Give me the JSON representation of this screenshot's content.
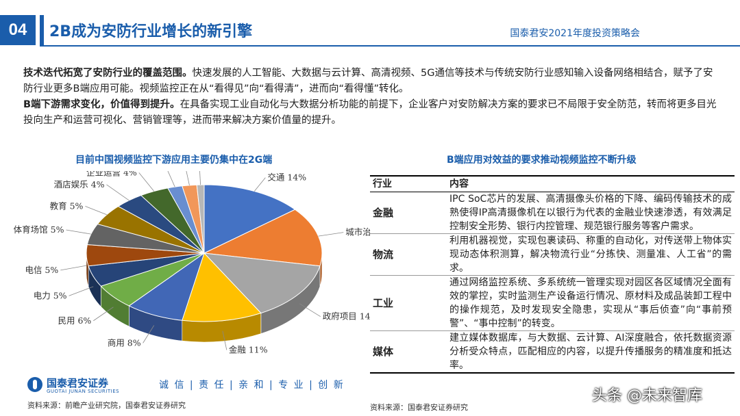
{
  "header": {
    "section_number": "04",
    "title": "2B成为安防行业增长的新引擎",
    "conference": "国泰君安2021年度投资策略会"
  },
  "intro": {
    "p1_bold": "技术迭代拓宽了安防行业的覆盖范围。",
    "p1_text": "快速发展的人工智能、大数据与云计算、高清视频、5G通信等技术与传统安防行业感知输入设备网络相结合，赋予了安防行业更多B端应用可能。视频监控正在从“看得见”向“看得清”，进而向“看得懂”转化。",
    "p2_bold": "B端下游需求变化，价值得到提升。",
    "p2_text": "在具备实现工业自动化与大数据分析功能的前提下，企业客户对安防解决方案的要求已不局限于安全防范，转而将更多目光投向生产和运营可视化、营销管理等，进而带来解决方案价值量的提升。"
  },
  "left_chart_title": "目前中国视频监控下游应用主要仍集中在2G端",
  "right_title": "B端应用对效益的要求推动视频监控不断升级",
  "chart_data": {
    "type": "pie",
    "title": "目前中国视频监控下游应用主要仍集中在2G端",
    "categories": [
      "交通",
      "城市治安",
      "政府项目",
      "金融",
      "商用",
      "民用",
      "电力",
      "电信",
      "体育场馆",
      "教育",
      "酒店娱乐",
      "企业运营",
      "石油石化",
      "医院",
      "其他"
    ],
    "values": [
      14,
      14,
      14,
      11,
      8,
      6,
      5,
      5,
      5,
      5,
      4,
      4,
      2,
      2,
      1
    ],
    "labels": [
      "交通 14%",
      "城市治安 14%",
      "政府项目 14%",
      "金融 11%",
      "商用 8%",
      "民用 6%",
      "电力 5%",
      "电信 5%",
      "体育场馆 5%",
      "教育 5%",
      "酒店娱乐 4%",
      "企业运营 4%",
      "石油石化 2%",
      "医院 2%",
      "其他 1%"
    ],
    "colors": [
      "#4472c4",
      "#ed7d31",
      "#a5a5a5",
      "#ffc000",
      "#4167b6",
      "#70ad47",
      "#264478",
      "#9e480e",
      "#636363",
      "#997300",
      "#2a4a80",
      "#43682b",
      "#698ed0",
      "#f1975a",
      "#b7b7b7"
    ]
  },
  "table": {
    "headers": [
      "行业",
      "内容"
    ],
    "rows": [
      {
        "industry": "金融",
        "content": "IPC SoC芯片的发展、高清摄像头价格的下降、编码传输技术的成熟使得IP高清摄像机在以银行为代表的金融业快速渗透，有效满足控制安全形势、银行内控管理、规范银行服务等客户需求。"
      },
      {
        "industry": "物流",
        "content": "利用机器视觉，实现包裹读码、称重的自动化，对传送带上物体实现动态体积测算，解决物流行业“分拣快、测量准、人工省”的需求。"
      },
      {
        "industry": "工业",
        "content": "通过网络监控系统、多系统统一管理实现对园区各区域情况全面有效的掌控，实时监测生产设备运行情况、原材料及成品装卸工程中的操作规范，及时发现安全隐患，实现从“事后侦查”向“事前预警”、“事中控制”的转变。"
      },
      {
        "industry": "媒体",
        "content": "建立媒体数据库，与大数据、云计算、AI深度融合，依托数据资源分析受众特点，匹配相应的内容，以提升传播服务的精准度和抵达率。"
      }
    ]
  },
  "footer": {
    "logo_cn": "国泰君安证券",
    "logo_en": "GUOTAI JUNAN SECURITIES",
    "slogan": "诚 信 | 责 任 | 亲 和 | 专 业 | 创 新",
    "source_left": "资料来源：前瞻产业研究院，国泰君安证券研究",
    "source_right": "资料来源：国泰君安证券研究",
    "watermark": "头条 @未来智库"
  }
}
